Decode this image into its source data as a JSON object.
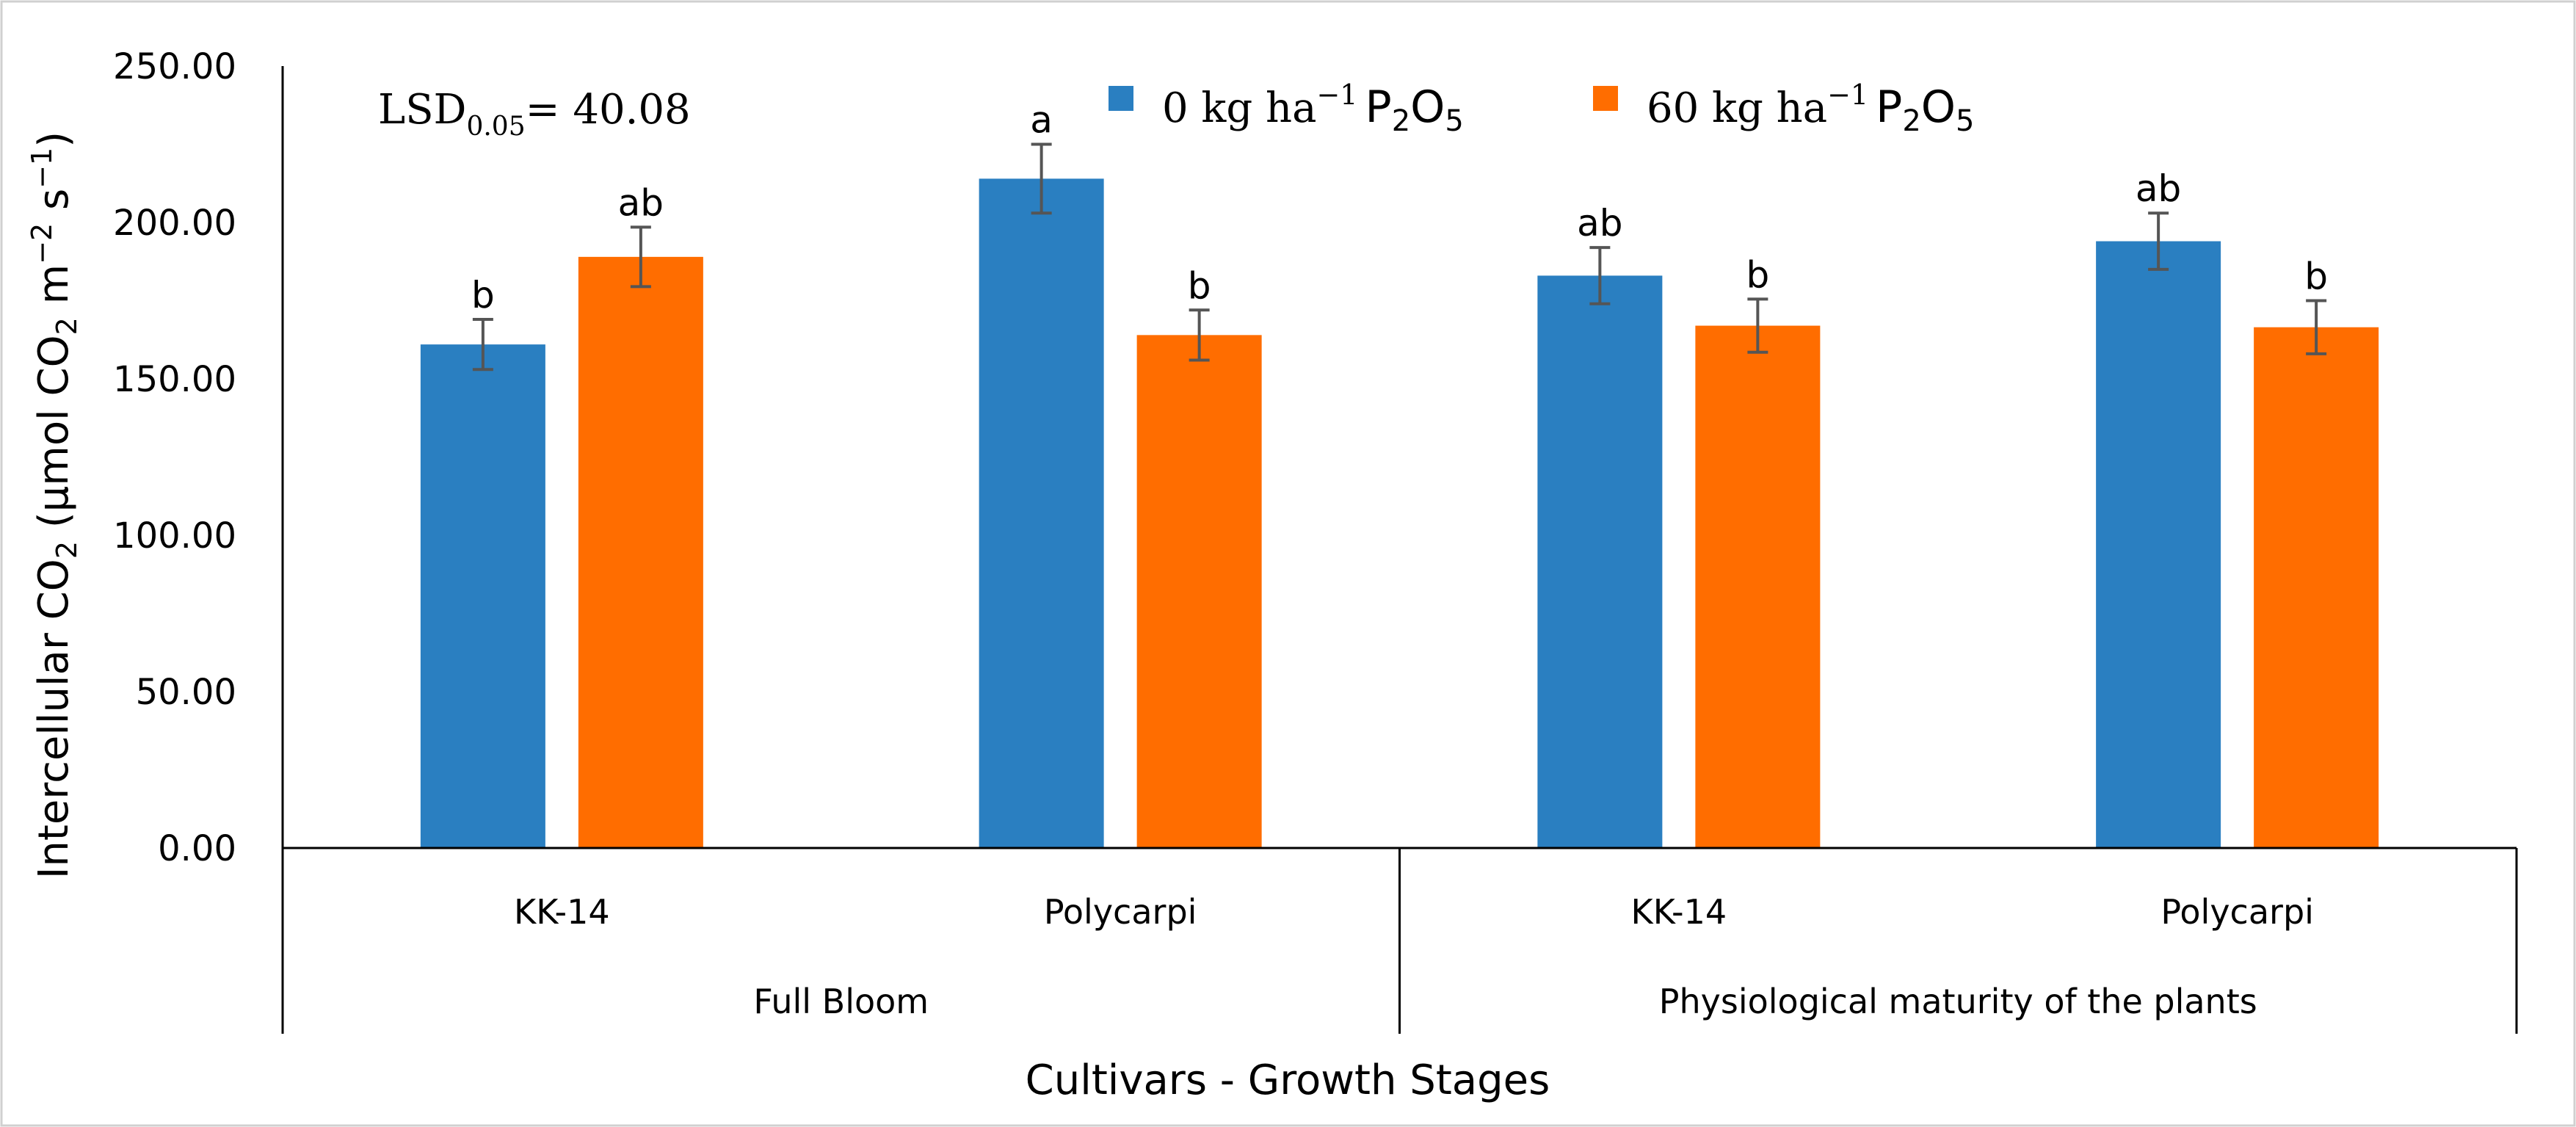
{
  "chart_data": {
    "type": "bar",
    "title": "",
    "annotation": {
      "lsd_prefix": "LSD",
      "lsd_subscript": "0.05",
      "lsd_value": "= 40.08"
    },
    "ylabel": {
      "main": "Intercellular CO",
      "sub": "2",
      "units_open": " (μmol CO",
      "units_sub": "2",
      "units_mid": " m",
      "units_sup1": "−2",
      "units_s": " s",
      "units_sup2": "−1",
      "units_close": ")"
    },
    "xlabel": "Cultivars - Growth Stages",
    "ylim": [
      0,
      250
    ],
    "yticks": [
      "0.00",
      "50.00",
      "100.00",
      "150.00",
      "200.00",
      "250.00"
    ],
    "ytick_values": [
      0,
      50,
      100,
      150,
      200,
      250
    ],
    "categories": [
      "KK-14",
      "Polycarpi",
      "KK-14",
      "Polycarpi"
    ],
    "groups": [
      {
        "label": "Full Bloom",
        "span": [
          0,
          1
        ]
      },
      {
        "label": "Physiological maturity of the plants",
        "span": [
          2,
          3
        ]
      }
    ],
    "series": [
      {
        "name": "0 kg ha−1 P2O5",
        "legend_text": "0 kg ha",
        "legend_sup": "−1",
        "legend_p": "P",
        "legend_sub1": "2",
        "legend_o": "O",
        "legend_sub2": "5",
        "color": "#2a7fc1",
        "values": [
          161,
          214,
          183,
          194
        ],
        "errors": [
          8,
          11,
          9,
          9
        ],
        "letters": [
          "b",
          "a",
          "ab",
          "ab"
        ]
      },
      {
        "name": "60 kg ha−1 P2O5",
        "legend_text": "60 kg ha",
        "legend_sup": "−1",
        "legend_p": "P",
        "legend_sub1": "2",
        "legend_o": "O",
        "legend_sub2": "5",
        "color": "#ff6d00",
        "values": [
          189,
          164,
          167,
          166.5
        ],
        "errors": [
          9.5,
          8,
          8.5,
          8.5
        ],
        "letters": [
          "ab",
          "b",
          "b",
          "b"
        ]
      }
    ]
  }
}
